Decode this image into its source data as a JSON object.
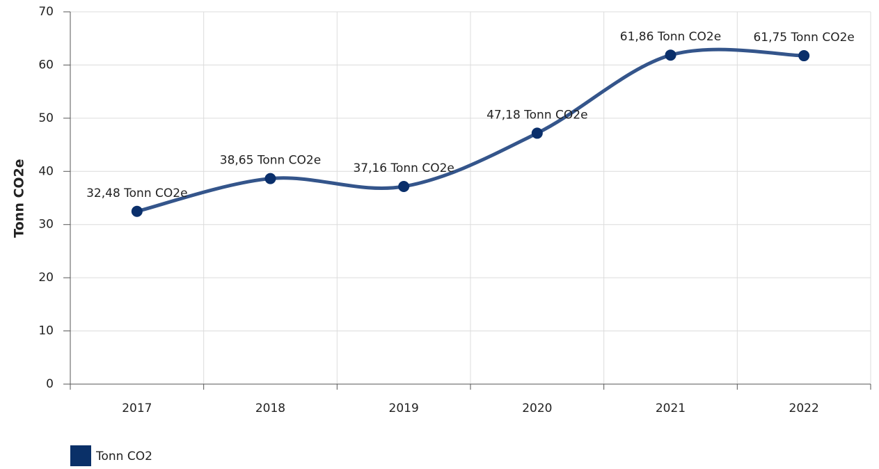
{
  "chart_data": {
    "type": "line",
    "y_axis_label": "Tonn CO2e",
    "categories": [
      "2017",
      "2018",
      "2019",
      "2020",
      "2021",
      "2022"
    ],
    "series": [
      {
        "name": "Tonn CO2",
        "color": "#34558b",
        "marker_color": "#0a2f6b",
        "legend_color": "#0a3068",
        "values": [
          32.48,
          38.65,
          37.16,
          47.18,
          61.86,
          61.75
        ],
        "value_labels": [
          "32,48 Tonn CO2e",
          "38,65 Tonn CO2e",
          "37,16 Tonn CO2e",
          "47,18 Tonn CO2e",
          "61,86 Tonn CO2e",
          "61,75 Tonn CO2e"
        ]
      }
    ],
    "ylim": [
      0,
      70
    ],
    "yticks": [
      0,
      10,
      20,
      30,
      40,
      50,
      60,
      70
    ],
    "grid": true,
    "legend": "bottom-left"
  }
}
